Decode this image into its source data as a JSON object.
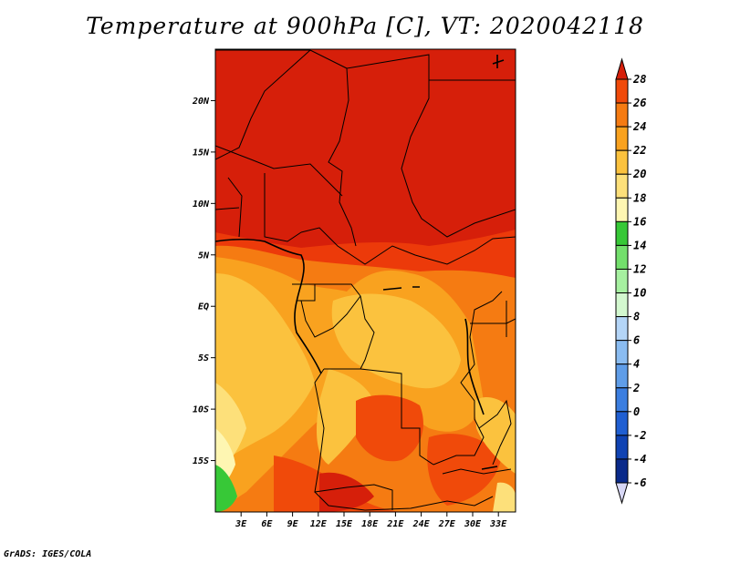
{
  "title": "Temperature at 900hPa [C], VT: 2020042118",
  "footer": "GrADS: IGES/COLA",
  "map": {
    "lon_range": [
      0,
      35
    ],
    "lat_range": [
      -20,
      25
    ],
    "y_ticks": [
      "20N",
      "15N",
      "10N",
      "5N",
      "EQ",
      "5S",
      "10S",
      "15S"
    ],
    "y_tick_values": [
      20,
      15,
      10,
      5,
      0,
      -5,
      -10,
      -15
    ],
    "x_ticks": [
      "3E",
      "6E",
      "9E",
      "12E",
      "15E",
      "18E",
      "21E",
      "24E",
      "27E",
      "30E",
      "33E"
    ],
    "x_tick_values": [
      3,
      6,
      9,
      12,
      15,
      18,
      21,
      24,
      27,
      30,
      33
    ]
  },
  "colorbar": {
    "labels": [
      "28",
      "26",
      "24",
      "22",
      "20",
      "18",
      "16",
      "14",
      "12",
      "10",
      "8",
      "6",
      "4",
      "2",
      "0",
      "-2",
      "-4",
      "-6"
    ],
    "colors": [
      "#d61f0a",
      "#f04a0a",
      "#f57b12",
      "#f9a21f",
      "#fbc23e",
      "#fde07a",
      "#fef6b2",
      "#37c837",
      "#73df6c",
      "#a6f0a0",
      "#d3f8cf",
      "#b4d5f7",
      "#8abcf1",
      "#5f9de8",
      "#3b7ee0",
      "#205fd2",
      "#1043b3",
      "#0a2a8a",
      "#08116a"
    ],
    "top_color": "#d61f0a",
    "bottom_color": "#d7d7f5"
  }
}
